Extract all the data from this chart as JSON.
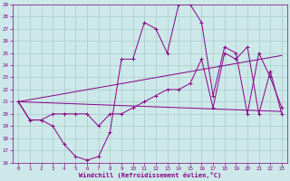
{
  "xlabel": "Windchill (Refroidissement éolien,°C)",
  "ylabel": "",
  "xlim": [
    -0.5,
    23.5
  ],
  "ylim": [
    16,
    29
  ],
  "yticks": [
    16,
    17,
    18,
    19,
    20,
    21,
    22,
    23,
    24,
    25,
    26,
    27,
    28,
    29
  ],
  "xticks": [
    0,
    1,
    2,
    3,
    4,
    5,
    6,
    7,
    8,
    9,
    10,
    11,
    12,
    13,
    14,
    15,
    16,
    17,
    18,
    19,
    20,
    21,
    22,
    23
  ],
  "bg_color": "#cce8e8",
  "grid_color": "#aacccc",
  "line_color": "#880088",
  "series1_x": [
    0,
    1,
    2,
    3,
    4,
    5,
    6,
    7,
    8,
    9,
    10,
    11,
    12,
    13,
    14,
    15,
    16,
    17,
    18,
    19,
    20,
    21,
    22,
    23
  ],
  "series1_y": [
    21.0,
    19.5,
    19.5,
    19.0,
    17.5,
    16.5,
    16.2,
    16.5,
    18.5,
    24.5,
    24.5,
    27.5,
    27.0,
    25.0,
    29.0,
    29.0,
    27.5,
    21.5,
    25.5,
    25.0,
    20.0,
    25.0,
    23.0,
    20.5
  ],
  "series2_x": [
    0,
    1,
    2,
    3,
    4,
    5,
    6,
    7,
    8,
    9,
    10,
    11,
    12,
    13,
    14,
    15,
    16,
    17,
    18,
    19,
    20,
    21,
    22,
    23
  ],
  "series2_y": [
    21.0,
    19.5,
    19.5,
    20.0,
    20.0,
    20.0,
    20.0,
    19.0,
    20.0,
    20.0,
    20.5,
    21.0,
    21.5,
    22.0,
    22.0,
    22.5,
    24.5,
    20.5,
    25.0,
    24.5,
    25.5,
    20.0,
    23.5,
    20.0
  ],
  "trend1_x": [
    0,
    23
  ],
  "trend1_y": [
    21.0,
    20.2
  ],
  "trend2_x": [
    0,
    23
  ],
  "trend2_y": [
    21.0,
    24.8
  ]
}
